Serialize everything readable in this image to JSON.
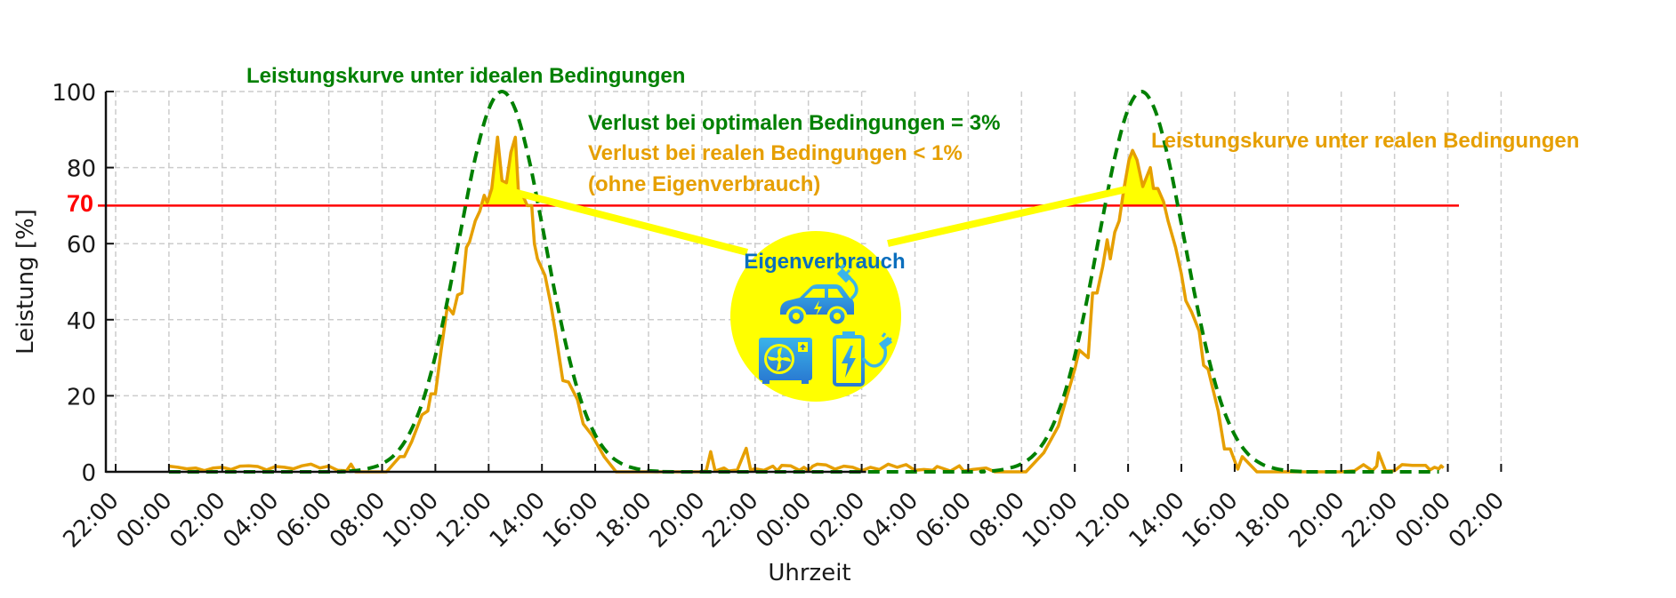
{
  "chart_data": {
    "type": "line",
    "title": "",
    "xlabel": "Uhrzeit",
    "ylabel": "Leistung [%]",
    "ylim": [
      0,
      100
    ],
    "xlim": [
      "21:38",
      "02:10"
    ],
    "yticks": [
      0,
      20,
      40,
      60,
      80,
      100
    ],
    "xtick_labels": [
      "22:00",
      "00:00",
      "02:00",
      "04:00",
      "06:00",
      "08:00",
      "10:00",
      "12:00",
      "14:00",
      "16:00",
      "18:00",
      "20:00",
      "22:00",
      "00:00",
      "02:00",
      "04:00",
      "06:00",
      "08:00",
      "10:00",
      "12:00",
      "14:00",
      "16:00",
      "18:00",
      "20:00",
      "22:00",
      "00:00",
      "02:00"
    ],
    "grid": true,
    "threshold": {
      "value": 70,
      "label": "70",
      "color": "#ff0000"
    },
    "highlight_color": "#ffff00",
    "series": [
      {
        "name": "Leistungskurve unter idealen Bedingungen",
        "style": "dashed",
        "color": "#008000",
        "points": [
          [
            "00:00",
            0
          ],
          [
            "06:00",
            0
          ],
          [
            "06:30",
            0.1
          ],
          [
            "07:00",
            0.3
          ],
          [
            "07:30",
            0.9
          ],
          [
            "08:00",
            2.1
          ],
          [
            "08:30",
            4.7
          ],
          [
            "09:00",
            9.7
          ],
          [
            "09:30",
            18.0
          ],
          [
            "10:00",
            30.5
          ],
          [
            "10:30",
            46.7
          ],
          [
            "11:00",
            65.1
          ],
          [
            "11:30",
            82.6
          ],
          [
            "12:00",
            95.3
          ],
          [
            "12:30",
            100
          ],
          [
            "13:00",
            95.3
          ],
          [
            "13:30",
            82.6
          ],
          [
            "14:00",
            65.1
          ],
          [
            "14:30",
            46.7
          ],
          [
            "15:00",
            30.5
          ],
          [
            "15:30",
            18.0
          ],
          [
            "16:00",
            9.7
          ],
          [
            "16:30",
            4.7
          ],
          [
            "17:00",
            2.1
          ],
          [
            "17:30",
            0.9
          ],
          [
            "18:00",
            0.3
          ],
          [
            "18:30",
            0.1
          ],
          [
            "19:00",
            0
          ],
          [
            "00:00",
            0
          ],
          [
            "06:00",
            0
          ],
          [
            "06:30",
            0.1
          ],
          [
            "07:00",
            0.3
          ],
          [
            "07:30",
            0.9
          ],
          [
            "08:00",
            2.1
          ],
          [
            "08:30",
            4.7
          ],
          [
            "09:00",
            9.7
          ],
          [
            "09:30",
            18.0
          ],
          [
            "10:00",
            30.5
          ],
          [
            "10:30",
            46.7
          ],
          [
            "11:00",
            65.1
          ],
          [
            "11:30",
            82.6
          ],
          [
            "12:00",
            95.3
          ],
          [
            "12:30",
            100
          ],
          [
            "13:00",
            95.3
          ],
          [
            "13:30",
            82.6
          ],
          [
            "14:00",
            65.1
          ],
          [
            "14:30",
            46.7
          ],
          [
            "15:00",
            30.5
          ],
          [
            "15:30",
            18.0
          ],
          [
            "16:00",
            9.7
          ],
          [
            "16:30",
            4.7
          ],
          [
            "17:00",
            2.1
          ],
          [
            "17:30",
            0.9
          ],
          [
            "18:00",
            0.3
          ],
          [
            "18:30",
            0.1
          ],
          [
            "19:00",
            0
          ],
          [
            "23:40",
            0
          ]
        ]
      },
      {
        "name": "Leistungskurve unter realen Bedingungen",
        "style": "solid",
        "color": "#e69f00",
        "points": [
          [
            "00:00",
            1.5
          ],
          [
            "00:20",
            1.2
          ],
          [
            "00:40",
            0.8
          ],
          [
            "01:00",
            1.0
          ],
          [
            "01:20",
            0.3
          ],
          [
            "01:40",
            1.0
          ],
          [
            "02:00",
            1.2
          ],
          [
            "02:20",
            0.6
          ],
          [
            "02:40",
            1.5
          ],
          [
            "03:00",
            1.6
          ],
          [
            "03:20",
            1.4
          ],
          [
            "03:40",
            0.5
          ],
          [
            "04:00",
            1.4
          ],
          [
            "04:20",
            1.2
          ],
          [
            "04:40",
            0.8
          ],
          [
            "05:00",
            1.6
          ],
          [
            "05:20",
            2.0
          ],
          [
            "05:40",
            1.0
          ],
          [
            "06:00",
            1.5
          ],
          [
            "06:20",
            0.4
          ],
          [
            "06:40",
            0.3
          ],
          [
            "06:50",
            2.0
          ],
          [
            "07:00",
            0
          ],
          [
            "08:10",
            0
          ],
          [
            "08:40",
            4
          ],
          [
            "08:50",
            4
          ],
          [
            "09:07",
            8
          ],
          [
            "09:30",
            15
          ],
          [
            "09:43",
            16
          ],
          [
            "09:50",
            20.5
          ],
          [
            "10:00",
            20.5
          ],
          [
            "10:13",
            32
          ],
          [
            "10:27",
            43.5
          ],
          [
            "10:40",
            41.5
          ],
          [
            "10:50",
            46.5
          ],
          [
            "11:00",
            47
          ],
          [
            "11:10",
            59
          ],
          [
            "11:17",
            60.5
          ],
          [
            "11:30",
            66
          ],
          [
            "11:40",
            68.5
          ],
          [
            "11:50",
            72.7
          ],
          [
            "11:57",
            70.8
          ],
          [
            "12:07",
            74.5
          ],
          [
            "12:20",
            88
          ],
          [
            "12:30",
            76.6
          ],
          [
            "12:40",
            76
          ],
          [
            "12:50",
            84
          ],
          [
            "13:00",
            88
          ],
          [
            "13:07",
            74
          ],
          [
            "13:17",
            72.7
          ],
          [
            "13:27",
            70
          ],
          [
            "13:37",
            70
          ],
          [
            "13:43",
            60
          ],
          [
            "13:50",
            56
          ],
          [
            "14:07",
            51.6
          ],
          [
            "14:20",
            44
          ],
          [
            "14:30",
            37
          ],
          [
            "14:47",
            24
          ],
          [
            "15:00",
            23.6
          ],
          [
            "15:20",
            19
          ],
          [
            "15:33",
            12.6
          ],
          [
            "15:53",
            9.6
          ],
          [
            "16:20",
            4
          ],
          [
            "16:47",
            0
          ],
          [
            "20:00",
            0
          ],
          [
            "20:10",
            0.3
          ],
          [
            "20:20",
            5.3
          ],
          [
            "20:30",
            0.2
          ],
          [
            "20:50",
            1.0
          ],
          [
            "21:00",
            0.2
          ],
          [
            "21:20",
            0.5
          ],
          [
            "21:40",
            6.2
          ],
          [
            "21:50",
            0.5
          ],
          [
            "22:00",
            0.8
          ],
          [
            "22:20",
            0.4
          ],
          [
            "22:40",
            1.5
          ],
          [
            "22:50",
            0.3
          ],
          [
            "23:00",
            1.7
          ],
          [
            "23:20",
            1.6
          ],
          [
            "23:40",
            0.4
          ],
          [
            "23:50",
            1.2
          ],
          [
            "00:00",
            0.3
          ],
          [
            "00:10",
            1.5
          ],
          [
            "00:20",
            2.0
          ],
          [
            "00:40",
            1.8
          ],
          [
            "01:00",
            0.7
          ],
          [
            "01:20",
            1.5
          ],
          [
            "01:40",
            1.2
          ],
          [
            "02:00",
            0.3
          ],
          [
            "02:20",
            1.2
          ],
          [
            "02:40",
            0.6
          ],
          [
            "03:00",
            2.0
          ],
          [
            "03:20",
            1.2
          ],
          [
            "03:40",
            1.9
          ],
          [
            "04:00",
            0.4
          ],
          [
            "04:20",
            0.6
          ],
          [
            "04:40",
            0.4
          ],
          [
            "04:50",
            1.4
          ],
          [
            "05:10",
            0.6
          ],
          [
            "05:20",
            0.2
          ],
          [
            "05:40",
            1.6
          ],
          [
            "05:50",
            0.2
          ],
          [
            "06:10",
            0.6
          ],
          [
            "06:40",
            1.0
          ],
          [
            "06:50",
            0.5
          ],
          [
            "07:00",
            0
          ],
          [
            "08:10",
            0
          ],
          [
            "08:50",
            5
          ],
          [
            "09:23",
            12
          ],
          [
            "10:00",
            27
          ],
          [
            "10:10",
            32
          ],
          [
            "10:30",
            30
          ],
          [
            "10:40",
            47
          ],
          [
            "10:50",
            47
          ],
          [
            "11:03",
            54
          ],
          [
            "11:13",
            61
          ],
          [
            "11:20",
            56
          ],
          [
            "11:30",
            63
          ],
          [
            "11:40",
            66
          ],
          [
            "11:50",
            74
          ],
          [
            "12:02",
            82
          ],
          [
            "12:10",
            84.5
          ],
          [
            "12:20",
            82
          ],
          [
            "12:33",
            75
          ],
          [
            "12:50",
            80
          ],
          [
            "12:57",
            74.5
          ],
          [
            "13:07",
            74.5
          ],
          [
            "13:20",
            71
          ],
          [
            "13:30",
            66
          ],
          [
            "13:47",
            59
          ],
          [
            "14:00",
            52
          ],
          [
            "14:10",
            45
          ],
          [
            "14:23",
            42
          ],
          [
            "14:40",
            37
          ],
          [
            "14:50",
            28
          ],
          [
            "15:00",
            27
          ],
          [
            "15:23",
            16
          ],
          [
            "15:37",
            6
          ],
          [
            "15:50",
            6
          ],
          [
            "16:07",
            0.7
          ],
          [
            "16:17",
            4
          ],
          [
            "16:50",
            0
          ],
          [
            "20:00",
            0
          ],
          [
            "20:30",
            0.3
          ],
          [
            "20:50",
            1.9
          ],
          [
            "21:10",
            0.3
          ],
          [
            "21:20",
            1.5
          ],
          [
            "21:24",
            5
          ],
          [
            "21:40",
            0.2
          ],
          [
            "22:00",
            0.3
          ],
          [
            "22:17",
            1.9
          ],
          [
            "22:40",
            1.7
          ],
          [
            "23:10",
            1.7
          ],
          [
            "23:20",
            0.5
          ],
          [
            "23:30",
            1.2
          ],
          [
            "23:40",
            0.8
          ],
          [
            "23:45",
            1.6
          ],
          [
            "23:50",
            1.0
          ]
        ]
      }
    ],
    "annotations": {
      "loss_optimal": "Verlust bei optimalen Bedingungen = 3%",
      "loss_real": "Verlust bei realen Bedingungen < 1%",
      "loss_note": "(ohne Eigenverbrauch)",
      "self_consumption": "Eigenverbrauch",
      "self_consumption_color": "#0a6ebd",
      "icons": [
        "electric-car-icon",
        "heat-pump-icon",
        "battery-charging-icon"
      ]
    }
  }
}
